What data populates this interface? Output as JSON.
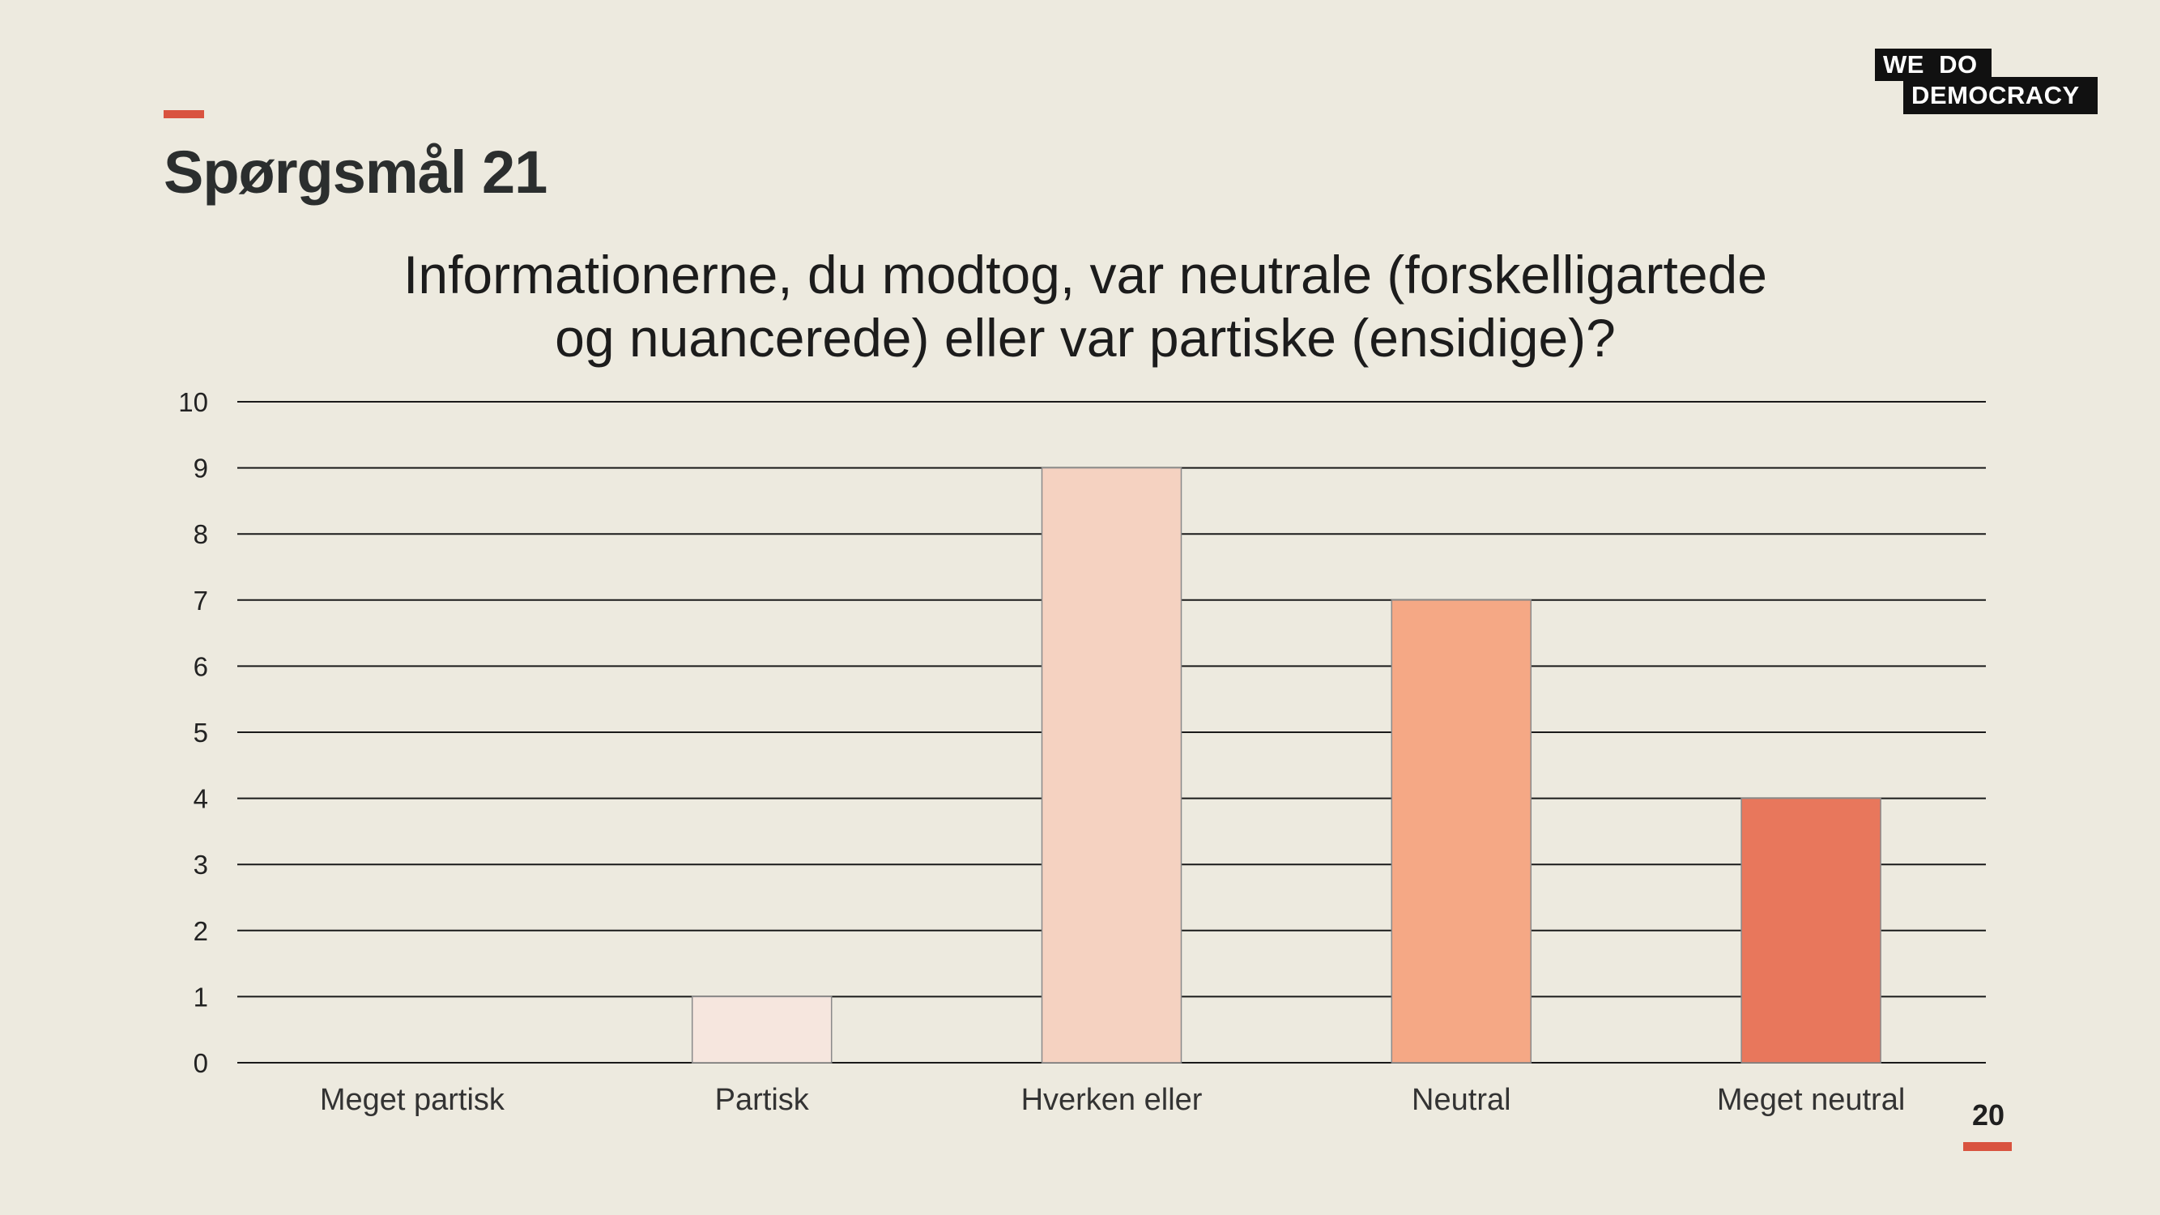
{
  "slide": {
    "heading": "Spørgsmål 21",
    "page_number": "20"
  },
  "logo": {
    "line1": "WE  DO",
    "line2": "DEMOCRACY"
  },
  "colors": {
    "background": "#edeadf",
    "accent": "#d9533f"
  },
  "chart_data": {
    "type": "bar",
    "title": "Informationerne, du modtog, var neutrale (forskelligartede og nuancerede) eller var partiske (ensidige)?",
    "title_lines": [
      "Informationerne, du modtog, var neutrale (forskelligartede",
      "og nuancerede) eller var partiske (ensidige)?"
    ],
    "categories": [
      "Meget partisk",
      "Partisk",
      "Hverken eller",
      "Neutral",
      "Meget neutral"
    ],
    "values": [
      0,
      1,
      9,
      7,
      4
    ],
    "bar_colors": [
      "#f8ece6",
      "#f6e6de",
      "#f5d2c1",
      "#f5a885",
      "#e8775c"
    ],
    "ylim": [
      0,
      10
    ],
    "yticks": [
      "0",
      "1",
      "2",
      "3",
      "4",
      "5",
      "6",
      "7",
      "8",
      "9",
      "10"
    ],
    "grid": true,
    "legend": "none"
  }
}
